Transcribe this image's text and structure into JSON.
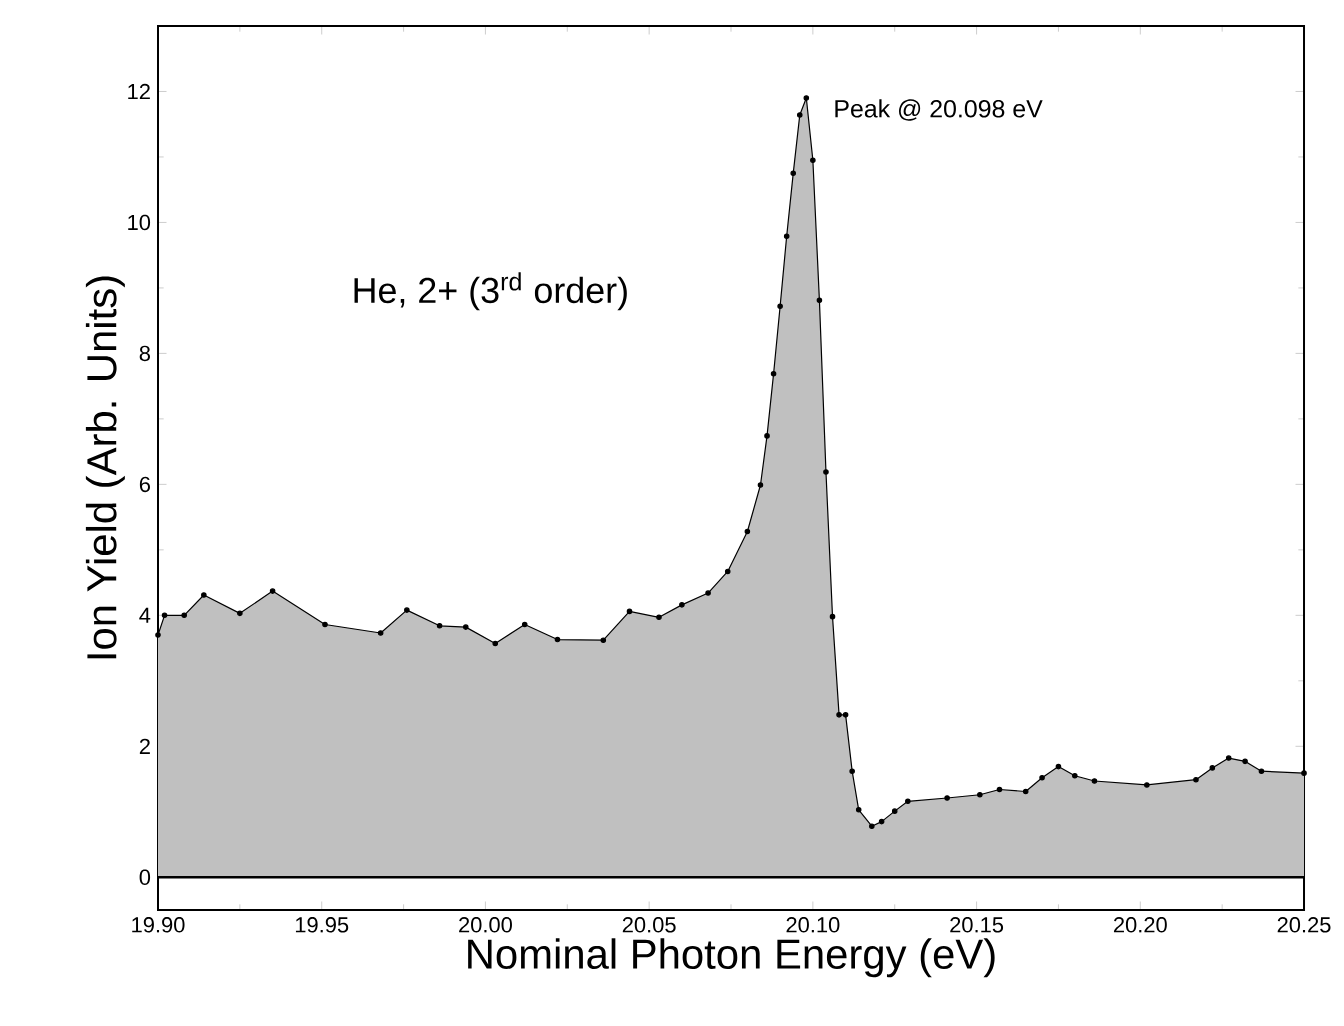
{
  "chart_data": {
    "type": "area",
    "xlabel": "Nominal Photon Energy (eV)",
    "ylabel": "Ion Yield (Arb. Units)",
    "annotations": [
      {
        "text": "Peak @ 20.098 eV",
        "x": 20.098,
        "y": 11.9
      },
      "He, 2+ (3$^{rd}$ order)"
    ],
    "x": [
      19.9,
      19.902,
      19.908,
      19.914,
      19.925,
      19.935,
      19.951,
      19.968,
      19.976,
      19.986,
      19.994,
      20.003,
      20.012,
      20.022,
      20.036,
      20.044,
      20.053,
      20.06,
      20.068,
      20.074,
      20.08,
      20.084,
      20.086,
      20.088,
      20.09,
      20.092,
      20.094,
      20.096,
      20.098,
      20.1,
      20.102,
      20.104,
      20.106,
      20.108,
      20.11,
      20.112,
      20.114,
      20.118,
      20.121,
      20.125,
      20.129,
      20.141,
      20.151,
      20.157,
      20.165,
      20.17,
      20.175,
      20.18,
      20.186,
      20.202,
      20.217,
      20.222,
      20.227,
      20.232,
      20.237,
      20.25
    ],
    "series": [
      {
        "color": "#c0c0c0",
        "values": [
          3.7,
          4.0,
          4.0,
          4.31,
          4.03,
          4.37,
          3.86,
          3.73,
          4.08,
          3.84,
          3.82,
          3.57,
          3.86,
          3.63,
          3.62,
          4.06,
          3.97,
          4.16,
          4.34,
          4.67,
          5.28,
          5.99,
          6.74,
          7.69,
          8.72,
          9.79,
          10.75,
          11.64,
          11.9,
          10.95,
          8.81,
          6.19,
          3.98,
          2.48,
          2.48,
          1.62,
          1.03,
          0.78,
          0.85,
          1.01,
          1.16,
          1.21,
          1.26,
          1.34,
          1.31,
          1.52,
          1.69,
          1.55,
          1.47,
          1.41,
          1.49,
          1.67,
          1.82,
          1.77,
          1.62,
          1.59
        ]
      }
    ],
    "xlim": [
      19.9,
      20.25
    ],
    "ylim": [
      -0.5,
      13
    ],
    "xticks": [
      {
        "value": 19.9,
        "label": "19.90"
      },
      {
        "value": 19.95,
        "label": "19.95"
      },
      {
        "value": 20.0,
        "label": "20.00"
      },
      {
        "value": 20.05,
        "label": "20.05"
      },
      {
        "value": 20.1,
        "label": "20.10"
      },
      {
        "value": 20.15,
        "label": "20.15"
      },
      {
        "value": 20.2,
        "label": "20.20"
      },
      {
        "value": 20.25,
        "label": "20.25"
      }
    ],
    "yticks": [
      0,
      2,
      4,
      6,
      8,
      10,
      12
    ],
    "ref_lines": [
      {
        "axis": "y",
        "value": 0,
        "color": "#000000"
      }
    ],
    "marker": "circle",
    "line_style": "solid"
  }
}
